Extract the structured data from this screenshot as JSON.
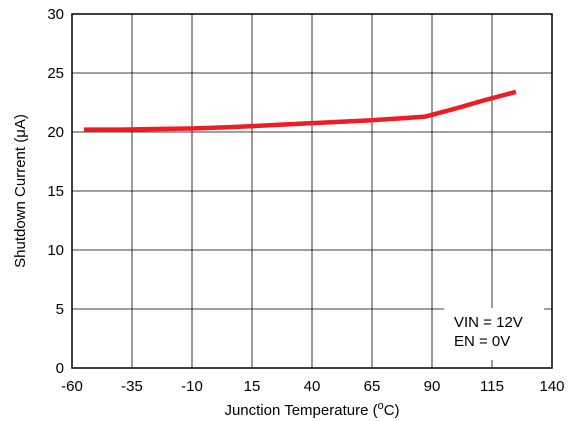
{
  "chart_data": {
    "type": "line",
    "title": "",
    "xlabel": "Junction Temperature (",
    "xlabel_sup": "o",
    "xlabel_tail": "C)",
    "ylabel": "Shutdown Current (μA)",
    "xlim": [
      -60,
      140
    ],
    "ylim": [
      0,
      30
    ],
    "x_ticks": [
      -60,
      -35,
      -10,
      15,
      40,
      65,
      90,
      115,
      140
    ],
    "x_tick_labels": [
      "-60",
      "-35",
      "-10",
      "15",
      "40",
      "65",
      "90",
      "115",
      "140"
    ],
    "y_ticks": [
      0,
      5,
      10,
      15,
      20,
      25,
      30
    ],
    "y_tick_labels": [
      "0",
      "5",
      "10",
      "15",
      "20",
      "25",
      "30"
    ],
    "grid": true,
    "legend": "none",
    "annotations": [
      "VIN = 12V",
      "EN = 0V"
    ],
    "series": [
      {
        "color": "#ee1c25",
        "x": [
          -55,
          -40,
          -25,
          -10,
          5,
          20,
          35,
          50,
          65,
          80,
          87,
          100,
          112,
          125
        ],
        "y": [
          20.2,
          20.2,
          20.25,
          20.3,
          20.4,
          20.55,
          20.7,
          20.85,
          21.0,
          21.2,
          21.3,
          22.0,
          22.7,
          23.4
        ]
      }
    ]
  }
}
